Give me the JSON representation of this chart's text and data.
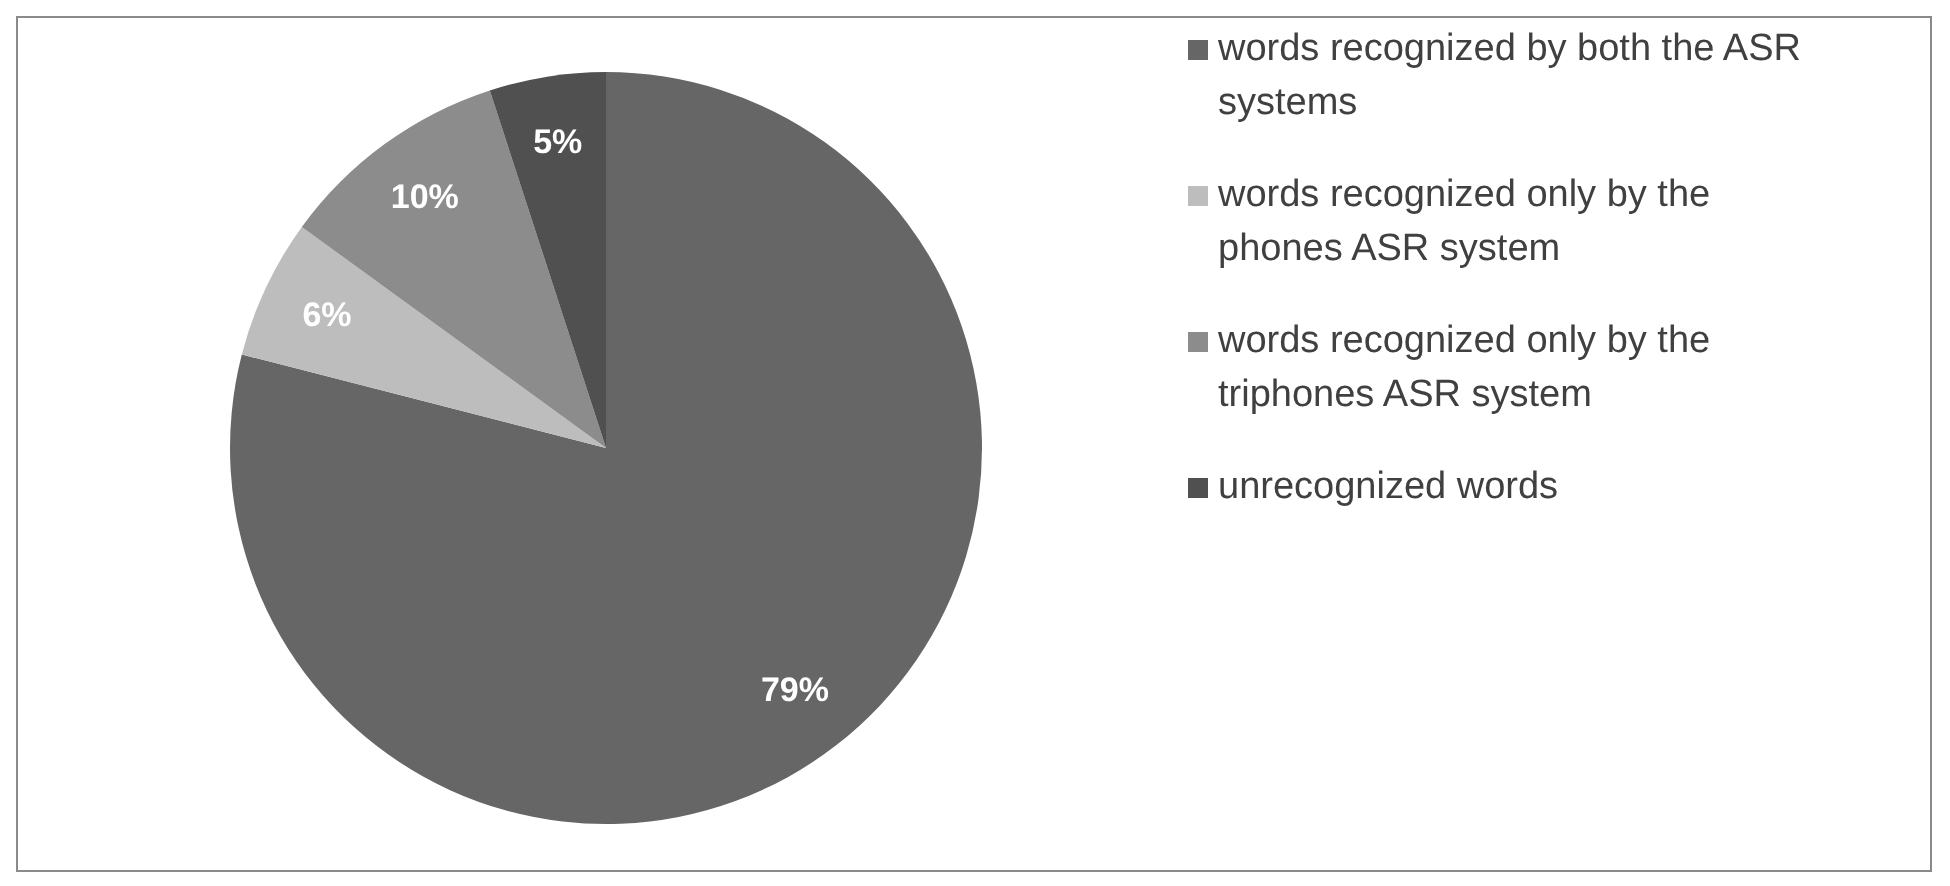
{
  "chart_data": {
    "type": "pie",
    "categories": [
      "words recognized by both the ASR systems",
      "words recognized only by the phones ASR system",
      "words recognized only by the triphones ASR system",
      "unrecognized words"
    ],
    "values": [
      79,
      6,
      10,
      5
    ],
    "colors": [
      "#666666",
      "#bdbdbd",
      "#8c8c8c",
      "#505050"
    ],
    "value_labels": [
      "79%",
      "6%",
      "10%",
      "5%"
    ],
    "legend": "right"
  }
}
